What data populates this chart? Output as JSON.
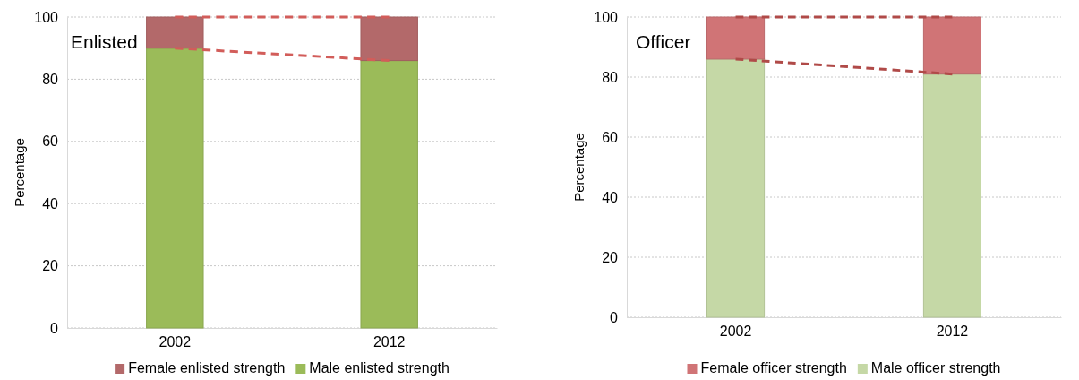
{
  "chart_data": [
    {
      "type": "bar",
      "title": "Enlisted",
      "ylabel": "Percentage",
      "categories": [
        "2002",
        "2012"
      ],
      "stacked": true,
      "ylim": [
        0,
        100
      ],
      "yticks": [
        0,
        20,
        40,
        60,
        80,
        100
      ],
      "grid": "y",
      "legend": "bottom",
      "series": [
        {
          "name": "Male enlisted strength",
          "color": "#9bbb59",
          "values": [
            90,
            86
          ]
        },
        {
          "name": "Female enlisted strength",
          "color": "#b3696a",
          "values": [
            10,
            14
          ]
        },
        {
          "type": "line",
          "color": "#d25d5a",
          "line_style": "dashed",
          "values": [
            100,
            100
          ]
        },
        {
          "type": "line",
          "color": "#d25d5a",
          "line_style": "dashed",
          "values": [
            90,
            86
          ]
        }
      ]
    },
    {
      "type": "bar",
      "title": "Officer",
      "ylabel": "Percentage",
      "categories": [
        "2002",
        "2012"
      ],
      "stacked": true,
      "ylim": [
        0,
        100
      ],
      "yticks": [
        0,
        20,
        40,
        60,
        80,
        100
      ],
      "grid": "y",
      "legend": "bottom",
      "series": [
        {
          "name": "Male officer strength",
          "color": "#c5d8a6",
          "values": [
            86,
            81
          ]
        },
        {
          "name": "Female officer strength",
          "color": "#d07476",
          "values": [
            14,
            19
          ]
        },
        {
          "type": "line",
          "color": "#b04a48",
          "line_style": "dashed",
          "values": [
            100,
            100
          ]
        },
        {
          "type": "line",
          "color": "#b04a48",
          "line_style": "dashed",
          "values": [
            86,
            81
          ]
        }
      ]
    }
  ]
}
